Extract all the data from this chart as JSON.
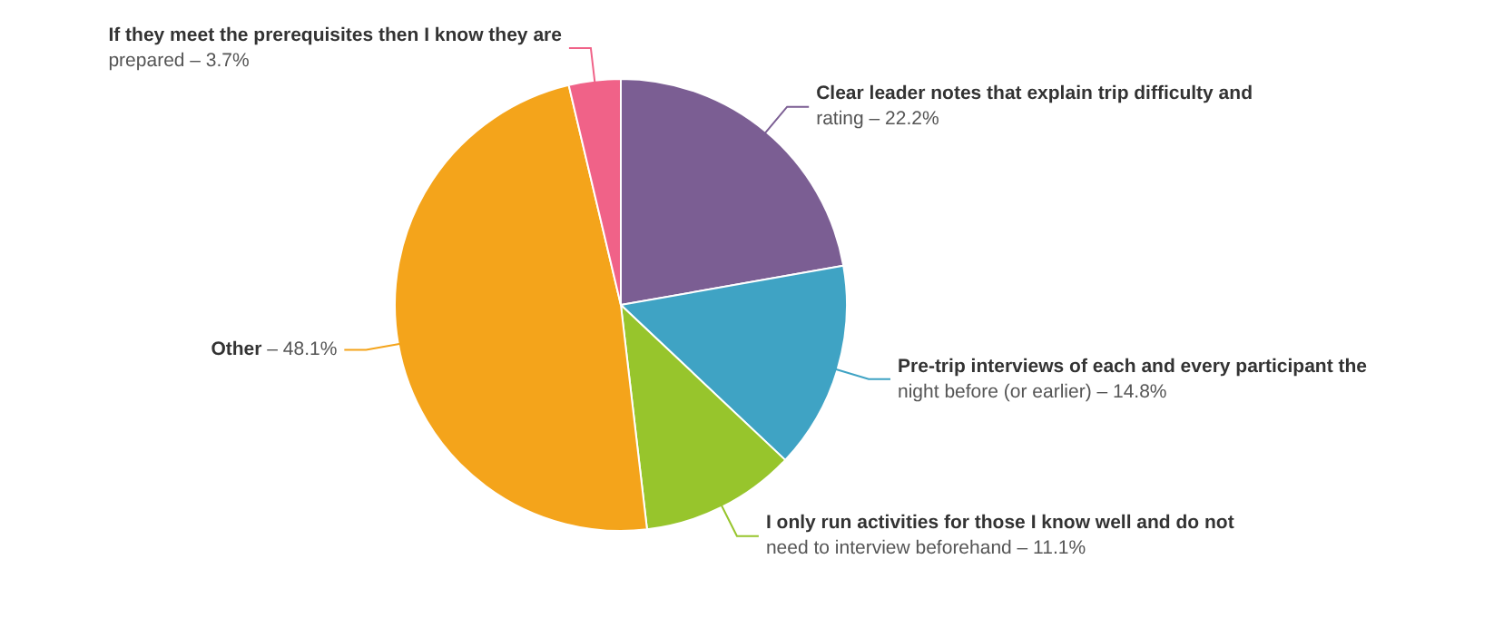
{
  "chart_data": {
    "type": "pie",
    "categories": [
      "Clear leader notes that explain trip difficulty and rating –",
      "Pre-trip interviews of each and every participant the night before (or earlier) –",
      "I only run activities for those I know well and do not need to interview beforehand –",
      "Other –",
      "If they meet the prerequisites then I know they are prepared –"
    ],
    "values": [
      22.2,
      14.8,
      11.1,
      48.1,
      3.7
    ],
    "colors": [
      "#7b5e93",
      "#3fa3c4",
      "#97c52c",
      "#f4a41b",
      "#f06288"
    ],
    "value_labels": [
      "22.2%",
      "14.8%",
      "11.1%",
      "48.1%",
      "3.7%"
    ],
    "legend": false
  }
}
